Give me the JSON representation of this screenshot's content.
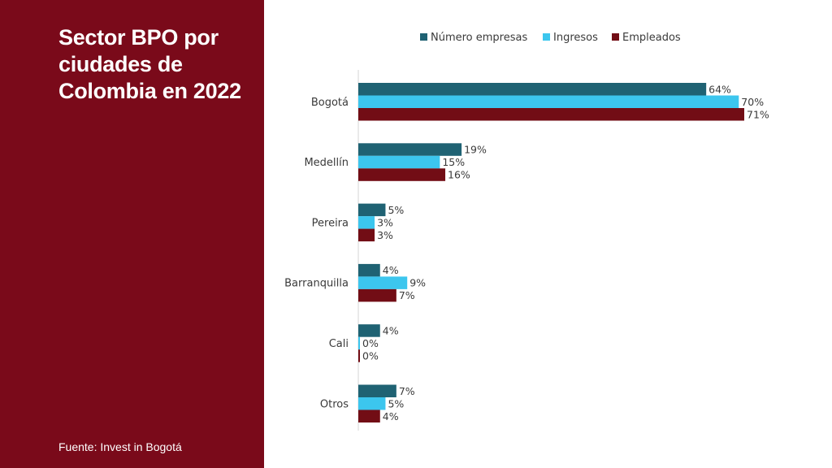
{
  "panel": {
    "title": "Sector BPO por ciudades de Colombia en 2022",
    "source": "Fuente: Invest in Bogotá",
    "background": "#7a0a1a"
  },
  "chart_data": {
    "type": "bar",
    "orientation": "horizontal",
    "categories": [
      "Bogotá",
      "Medellín",
      "Pereira",
      "Barranquilla",
      "Cali",
      "Otros"
    ],
    "series": [
      {
        "name": "Número empresas",
        "color": "#1f6273",
        "values": [
          64,
          19,
          5,
          4,
          4,
          7
        ],
        "labels": [
          "64%",
          "19%",
          "5%",
          "4%",
          "4%",
          "7%"
        ]
      },
      {
        "name": "Ingresos",
        "color": "#3cc6ee",
        "values": [
          70,
          15,
          3,
          9,
          0,
          5
        ],
        "labels": [
          "70%",
          "15%",
          "3%",
          "9%",
          "0%",
          "5%"
        ]
      },
      {
        "name": "Empleados",
        "color": "#720d15",
        "values": [
          71,
          16,
          3,
          7,
          0,
          4
        ],
        "labels": [
          "71%",
          "16%",
          "3%",
          "7%",
          "0%",
          "4%"
        ]
      }
    ],
    "xlim": [
      0,
      71
    ],
    "legend": "top",
    "grid": false
  }
}
